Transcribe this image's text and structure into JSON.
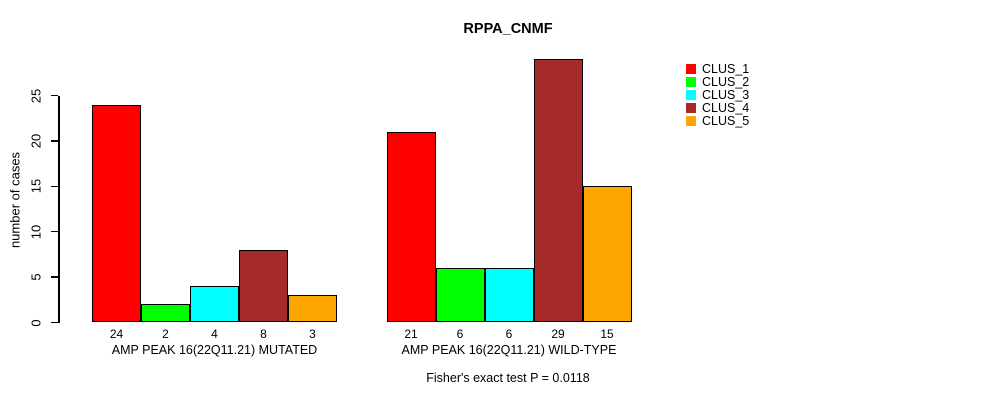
{
  "chart_data": {
    "type": "bar",
    "title": "RPPA_CNMF",
    "xlabel": "",
    "ylabel": "number of cases",
    "ylim": [
      0,
      25
    ],
    "yticks": [
      0,
      5,
      10,
      15,
      20,
      25
    ],
    "grid": false,
    "legend_position": "right",
    "bar_value_labels_shown": true,
    "categories": [
      "AMP PEAK 16(22Q11.21) MUTATED",
      "AMP PEAK 16(22Q11.21) WILD-TYPE"
    ],
    "series": [
      {
        "name": "CLUS_1",
        "color": "#FF0000",
        "values": [
          24,
          21
        ]
      },
      {
        "name": "CLUS_2",
        "color": "#00FF00",
        "values": [
          2,
          6
        ]
      },
      {
        "name": "CLUS_3",
        "color": "#00FFFF",
        "values": [
          4,
          6
        ]
      },
      {
        "name": "CLUS_4",
        "color": "#A52A2A",
        "values": [
          8,
          29
        ]
      },
      {
        "name": "CLUS_5",
        "color": "#FFA500",
        "values": [
          3,
          15
        ]
      }
    ],
    "footnote": "Fisher's exact test P = 0.0118"
  }
}
